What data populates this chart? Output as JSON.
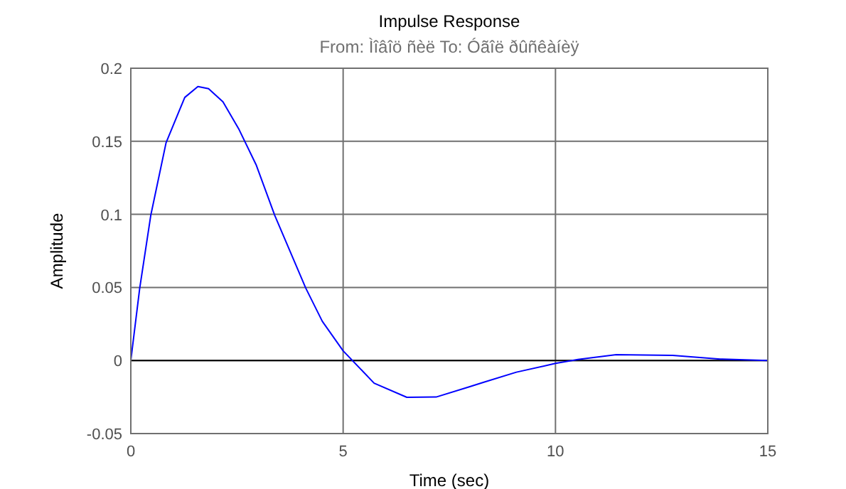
{
  "chart_data": {
    "type": "line",
    "title": "Impulse Response",
    "subtitle": "From: Ìîâîö ñèë  To: Óãîë ðûñêàíèÿ",
    "xlabel": "Time (sec)",
    "ylabel": "Amplitude",
    "x": [
      0,
      0.21,
      0.47,
      0.83,
      1.27,
      1.58,
      1.83,
      2.17,
      2.55,
      2.95,
      3.39,
      4.12,
      4.51,
      5.0,
      5.73,
      6.5,
      7.19,
      7.97,
      8.3,
      9.08,
      10.0,
      10.53,
      11.43,
      12.76,
      13.88,
      15
    ],
    "series": [
      {
        "color": "#0000ff",
        "values": [
          0,
          0.0495,
          0.0993,
          0.149,
          0.18,
          0.1875,
          0.186,
          0.177,
          0.158,
          0.134,
          0.0993,
          0.0495,
          0.0268,
          0.0066,
          -0.0155,
          -0.0252,
          -0.025,
          -0.018,
          -0.015,
          -0.008,
          -0.002,
          0.0007,
          0.004,
          0.0035,
          0.001,
          0
        ]
      }
    ],
    "xlim": [
      0,
      15
    ],
    "xticks": [
      0,
      5,
      10,
      15
    ],
    "ylim": [
      -0.05,
      0.2
    ],
    "yticks": [
      -0.05,
      0,
      0.05,
      0.1,
      0.15,
      0.2
    ],
    "grid": true,
    "ref_lines": [
      {
        "axis": "y",
        "value": 0,
        "color": "#000000"
      }
    ]
  }
}
